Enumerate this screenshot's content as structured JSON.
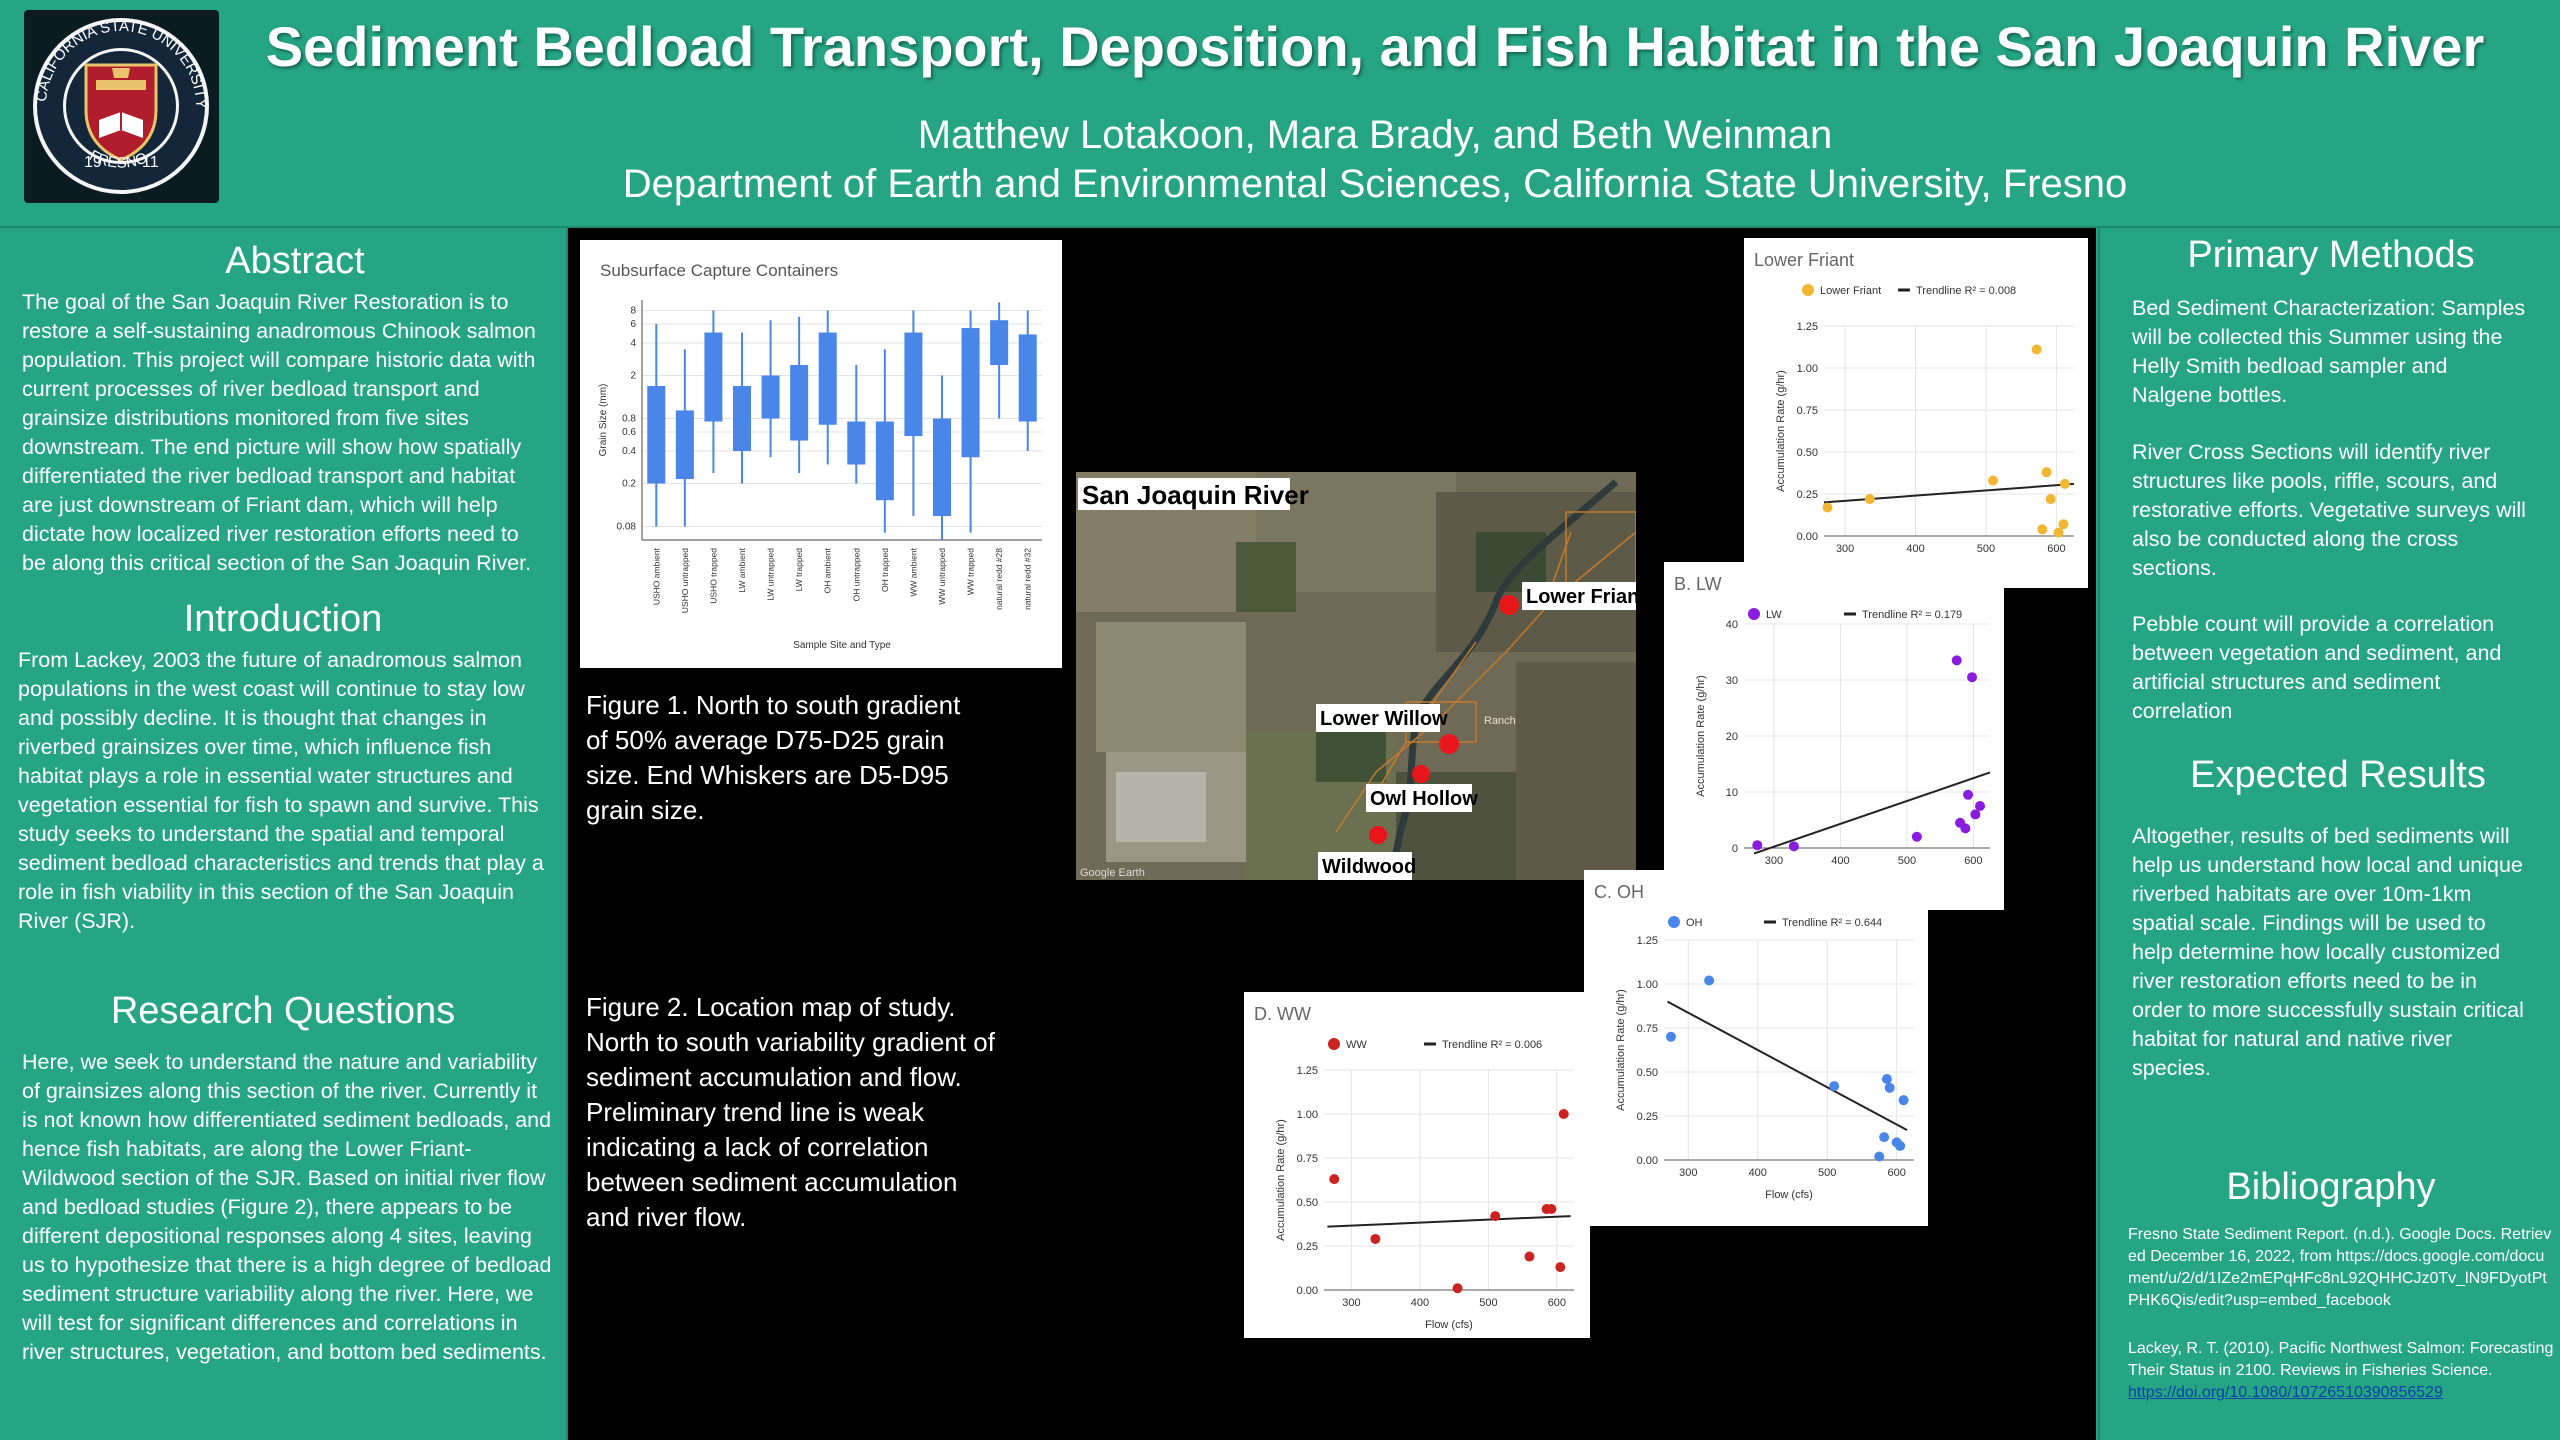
{
  "header": {
    "title": "Sediment Bedload Transport, Deposition, and Fish Habitat in the San Joaquin River",
    "authors": "Matthew Lotakoon, Mara Brady, and Beth Weinman",
    "affiliation": "Department of Earth and Environmental Sciences, California State University, Fresno",
    "logo_text_top": "CALIFORNIA STATE UNIVERSITY",
    "logo_text_bottom": "FRESNO",
    "logo_year_left": "19",
    "logo_year_right": "11"
  },
  "abstract": {
    "heading": "Abstract",
    "text": "The goal of the San Joaquin River Restoration is to restore a self-sustaining anadromous Chinook salmon population. This project will compare historic data with current processes of river bedload transport and grainsize distributions monitored from five sites downstream. The end picture will show how spatially differentiated the river bedload transport and habitat are just downstream of Friant dam, which will help dictate how localized river restoration efforts need to be along this critical section of the San Joaquin River."
  },
  "introduction": {
    "heading": "Introduction",
    "text": "From Lackey, 2003 the future of anadromous salmon populations in the west coast will continue to stay low and possibly decline.  It is thought that changes in riverbed grainsizes over time, which influence fish habitat plays a role in essential water structures and vegetation essential for fish to spawn and survive.  This study seeks to understand the spatial and temporal sediment bedload characteristics and trends that play a role in fish viability in this section of the San Joaquin River (SJR)."
  },
  "research_questions": {
    "heading": "Research Questions",
    "text": "Here, we seek to understand the nature and variability of grainsizes along this section of the river.  Currently it is not known how differentiated sediment bedloads, and hence fish habitats, are along the Lower Friant-Wildwood section of the SJR.  Based on initial river flow and bedload studies (Figure 2), there appears to be different depositional responses along 4 sites, leaving us to hypothesize that there is a high degree of bedload sediment structure variability along the river.  Here, we will test for significant differences and correlations in river structures, vegetation, and bottom bed sediments."
  },
  "primary_methods": {
    "heading": "Primary Methods",
    "paragraphs": [
      "Bed Sediment Characterization: Samples will be collected this Summer using the Helly Smith bedload sampler and Nalgene bottles.",
      "River Cross Sections will identify river structures like pools, riffle, scours, and restorative efforts.  Vegetative surveys will also be conducted along the cross sections.",
      "Pebble count will provide a correlation between vegetation and sediment, and artificial structures and sediment correlation"
    ]
  },
  "expected_results": {
    "heading": "Expected Results",
    "text": "Altogether, results of bed sediments will help us understand how local and unique riverbed habitats are over 10m-1km spatial scale.  Findings will be used to help determine how locally customized river restoration efforts need to be in order to more successfully sustain critical habitat for natural and native river species."
  },
  "bibliography": {
    "heading": "Bibliography",
    "entry1": "Fresno State Sediment Report. (n.d.). Google Docs. Retrieved December 16, 2022, from https://docs.google.com/document/u/2/d/1IZe2mEPqHFc8nL92QHHCJz0Tv_lN9FDyotPtPHK6Qis/edit?usp=embed_facebook",
    "entry2": "Lackey, R. T. (2010). Pacific Northwest Salmon: Forecasting Their Status in 2100. Reviews in Fisheries Science. ",
    "entry2_link": "https://doi.org/10.1080/10726510390856529"
  },
  "figure1_caption": "Figure 1. North to south gradient of 50% average D75-D25 grain size. End Whiskers are D5-D95 grain size.",
  "figure2_caption": "Figure 2. Location map of study. North to south variability gradient  of sediment accumulation and flow. Preliminary trend line is weak indicating a lack of correlation between sediment accumulation and river flow.",
  "map": {
    "title": "San Joaquin River",
    "sites": [
      "Lower Friant",
      "Lower Willow",
      "Owl Hollow",
      "Wildwood"
    ],
    "ranch_label": "Ranch",
    "attribution": "Google Earth",
    "colors": {
      "site_marker": "#e8161b"
    }
  },
  "chart_data": [
    {
      "id": "subsurface",
      "type": "box",
      "title": "Subsurface Capture Containers",
      "xlabel": "Sample Site and Type",
      "ylabel": "Grain Size (mm)",
      "yscale": "log",
      "ylim": [
        0.06,
        10
      ],
      "yticks": [
        0.08,
        0.2,
        0.4,
        0.6,
        0.8,
        2,
        4,
        6,
        8
      ],
      "ytick_labels": [
        "0.08",
        "0.2",
        "0.4",
        "0.6",
        "0.8",
        "2",
        "4",
        "6",
        "8"
      ],
      "color": "#4a86e8",
      "categories": [
        "USHO ambient",
        "USHO untrapped",
        "USHO trapped",
        "LW ambient",
        "LW untrapped",
        "LW trapped",
        "OH ambient",
        "OH untrapped",
        "OH trapped",
        "WW ambient",
        "WW untrapped",
        "WW trapped",
        "natural redd #28",
        "natural redd #32"
      ],
      "boxes": [
        {
          "low": 0.08,
          "q1": 0.2,
          "q3": 1.6,
          "high": 6
        },
        {
          "low": 0.08,
          "q1": 0.22,
          "q3": 0.95,
          "high": 3.5
        },
        {
          "low": 0.25,
          "q1": 0.75,
          "q3": 5,
          "high": 8
        },
        {
          "low": 0.2,
          "q1": 0.4,
          "q3": 1.6,
          "high": 5
        },
        {
          "low": 0.35,
          "q1": 0.8,
          "q3": 2,
          "high": 6.5
        },
        {
          "low": 0.25,
          "q1": 0.5,
          "q3": 2.5,
          "high": 7
        },
        {
          "low": 0.3,
          "q1": 0.7,
          "q3": 5,
          "high": 8
        },
        {
          "low": 0.2,
          "q1": 0.3,
          "q3": 0.75,
          "high": 2.5
        },
        {
          "low": 0.07,
          "q1": 0.14,
          "q3": 0.75,
          "high": 3.5
        },
        {
          "low": 0.1,
          "q1": 0.55,
          "q3": 5,
          "high": 8
        },
        {
          "low": 0.06,
          "q1": 0.1,
          "q3": 0.8,
          "high": 2
        },
        {
          "low": 0.07,
          "q1": 0.35,
          "q3": 5.5,
          "high": 8
        },
        {
          "low": 0.8,
          "q1": 2.5,
          "q3": 6.5,
          "high": 9.5
        },
        {
          "low": 0.4,
          "q1": 0.75,
          "q3": 4.8,
          "high": 8
        }
      ]
    },
    {
      "id": "lower_friant",
      "type": "scatter",
      "title": "Lower Friant",
      "legend": [
        "Lower Friant",
        "Trendline R² = 0.008"
      ],
      "color": "#f1b733",
      "xlabel": "Flow (cfs)",
      "ylabel": "Accumulation Rate (g/hr)",
      "xlim": [
        270,
        625
      ],
      "xticks": [
        300,
        400,
        500,
        600
      ],
      "ylim": [
        0,
        1.25
      ],
      "yticks": [
        0,
        0.25,
        0.5,
        0.75,
        1.0,
        1.25
      ],
      "ytick_labels": [
        "0.00",
        "0.25",
        "0.50",
        "0.75",
        "1.00",
        "1.25"
      ],
      "points": [
        [
          275,
          0.17
        ],
        [
          335,
          0.22
        ],
        [
          510,
          0.33
        ],
        [
          572,
          1.11
        ],
        [
          580,
          0.04
        ],
        [
          586,
          0.38
        ],
        [
          592,
          0.22
        ],
        [
          603,
          0.02
        ],
        [
          610,
          0.07
        ],
        [
          612,
          0.31
        ]
      ],
      "trend": [
        [
          270,
          0.2
        ],
        [
          625,
          0.31
        ]
      ]
    },
    {
      "id": "lw",
      "type": "scatter",
      "title": "B. LW",
      "legend": [
        "LW",
        "Trendline R² = 0.179"
      ],
      "color": "#8a1ce0",
      "xlabel": "",
      "ylabel": "Accumulation Rate (g/hr)",
      "xlim": [
        255,
        625
      ],
      "xticks": [
        300,
        400,
        500,
        600
      ],
      "ylim": [
        0,
        40
      ],
      "yticks": [
        0,
        10,
        20,
        30,
        40
      ],
      "ytick_labels": [
        "0",
        "10",
        "20",
        "30",
        "40"
      ],
      "points": [
        [
          275,
          0.5
        ],
        [
          330,
          0.3
        ],
        [
          515,
          2
        ],
        [
          575,
          33.5
        ],
        [
          580,
          4.5
        ],
        [
          588,
          3.5
        ],
        [
          592,
          9.5
        ],
        [
          598,
          30.5
        ],
        [
          603,
          6
        ],
        [
          610,
          7.5
        ]
      ],
      "trend": [
        [
          270,
          -1
        ],
        [
          625,
          13.5
        ]
      ]
    },
    {
      "id": "oh",
      "type": "scatter",
      "title": "C. OH",
      "legend": [
        "OH",
        "Trendline R² = 0.644"
      ],
      "color": "#4a86e8",
      "xlabel": "Flow (cfs)",
      "ylabel": "Accumulation Rate (g/hr)",
      "xlim": [
        265,
        625
      ],
      "xticks": [
        300,
        400,
        500,
        600
      ],
      "ylim": [
        0,
        1.25
      ],
      "yticks": [
        0,
        0.25,
        0.5,
        0.75,
        1.0,
        1.25
      ],
      "ytick_labels": [
        "0.00",
        "0.25",
        "0.50",
        "0.75",
        "1.00",
        "1.25"
      ],
      "points": [
        [
          275,
          0.7
        ],
        [
          330,
          1.02
        ],
        [
          510,
          0.42
        ],
        [
          575,
          0.02
        ],
        [
          582,
          0.13
        ],
        [
          586,
          0.46
        ],
        [
          590,
          0.41
        ],
        [
          600,
          0.1
        ],
        [
          605,
          0.08
        ],
        [
          610,
          0.34
        ]
      ],
      "trend": [
        [
          270,
          0.9
        ],
        [
          615,
          0.17
        ]
      ]
    },
    {
      "id": "ww",
      "type": "scatter",
      "title": "D. WW",
      "legend": [
        "WW",
        "Trendline R² = 0.006"
      ],
      "color": "#cc2222",
      "xlabel": "Flow (cfs)",
      "ylabel": "Accumulation Rate (g/hr)",
      "xlim": [
        260,
        625
      ],
      "xticks": [
        300,
        400,
        500,
        600
      ],
      "ylim": [
        0,
        1.25
      ],
      "yticks": [
        0,
        0.25,
        0.5,
        0.75,
        1.0,
        1.25
      ],
      "ytick_labels": [
        "0.00",
        "0.25",
        "0.50",
        "0.75",
        "1.00",
        "1.25"
      ],
      "points": [
        [
          275,
          0.63
        ],
        [
          335,
          0.29
        ],
        [
          455,
          0.01
        ],
        [
          510,
          0.42
        ],
        [
          560,
          0.19
        ],
        [
          585,
          0.46
        ],
        [
          592,
          0.46
        ],
        [
          605,
          0.13
        ],
        [
          610,
          1.0
        ]
      ],
      "trend": [
        [
          265,
          0.36
        ],
        [
          620,
          0.42
        ]
      ]
    }
  ]
}
